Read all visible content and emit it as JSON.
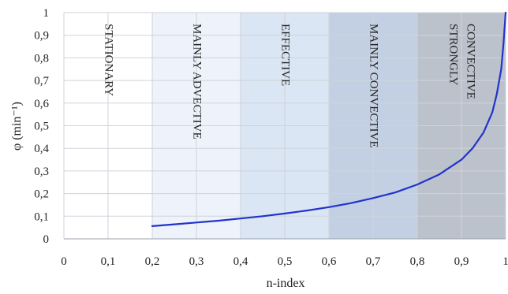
{
  "chart_data": {
    "type": "line",
    "title": "",
    "xlabel": "n-index",
    "ylabel": "φ (min⁻¹)",
    "xlim": [
      0,
      1
    ],
    "ylim": [
      0,
      1
    ],
    "x_ticks": [
      "0",
      "0,1",
      "0,2",
      "0,3",
      "0,4",
      "0,5",
      "0,6",
      "0,7",
      "0,8",
      "0,9",
      "1"
    ],
    "y_ticks": [
      "0",
      "0,1",
      "0,2",
      "0,3",
      "0,4",
      "0,5",
      "0,6",
      "0,7",
      "0,8",
      "0,9",
      "1"
    ],
    "grid": true,
    "regions": [
      {
        "from": 0.0,
        "to": 0.2,
        "label_lines": [
          "STATIONARY"
        ],
        "color": "#ffffff"
      },
      {
        "from": 0.2,
        "to": 0.4,
        "label_lines": [
          "MAINLY ADVECTIVE"
        ],
        "color": "#eef2fa"
      },
      {
        "from": 0.4,
        "to": 0.6,
        "label_lines": [
          "EFFECTIVE"
        ],
        "color": "#dae6f4"
      },
      {
        "from": 0.6,
        "to": 0.8,
        "label_lines": [
          "MAINLY CONVECTIVE"
        ],
        "color": "#c3d0e3"
      },
      {
        "from": 0.8,
        "to": 1.0,
        "label_lines": [
          "STRONGLY",
          "CONVECTIVE"
        ],
        "color": "#bcc2cc"
      }
    ],
    "series": [
      {
        "color": "#2233cc",
        "x": [
          0.2,
          0.25,
          0.3,
          0.35,
          0.4,
          0.45,
          0.5,
          0.55,
          0.6,
          0.65,
          0.7,
          0.75,
          0.8,
          0.85,
          0.9,
          0.925,
          0.95,
          0.97,
          0.98,
          0.99,
          0.995,
          1.0
        ],
        "y": [
          0.056,
          0.064,
          0.072,
          0.08,
          0.09,
          0.1,
          0.112,
          0.125,
          0.14,
          0.158,
          0.18,
          0.205,
          0.24,
          0.285,
          0.35,
          0.4,
          0.47,
          0.56,
          0.64,
          0.75,
          0.86,
          1.0
        ]
      }
    ]
  }
}
